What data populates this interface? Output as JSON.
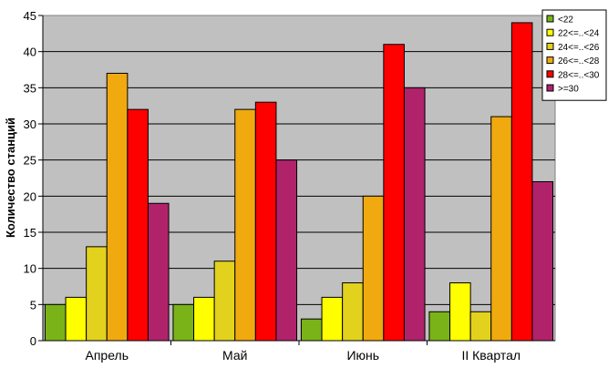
{
  "chart_data": {
    "type": "bar",
    "ylabel": "Количество станций",
    "xlabel": "",
    "ylim": [
      0,
      45
    ],
    "yticks": [
      0,
      5,
      10,
      15,
      20,
      25,
      30,
      35,
      40,
      45
    ],
    "grid": true,
    "legend_position": "top-right",
    "categories": [
      "Апрель",
      "Май",
      "Июнь",
      "II Квартал"
    ],
    "series": [
      {
        "name": "<22",
        "color": "#7AB317",
        "values": [
          5,
          5,
          3,
          4
        ]
      },
      {
        "name": "22<=..<24",
        "color": "#FFFF00",
        "values": [
          6,
          6,
          6,
          8
        ]
      },
      {
        "name": "24<=..<26",
        "color": "#E2D21E",
        "values": [
          13,
          11,
          8,
          4
        ]
      },
      {
        "name": "26<=..<28",
        "color": "#F0AA0F",
        "values": [
          37,
          32,
          20,
          31
        ]
      },
      {
        "name": "28<=..<30",
        "color": "#FF0000",
        "values": [
          32,
          33,
          41,
          44
        ]
      },
      {
        "name": ">=30",
        "color": "#B0236B",
        "values": [
          19,
          25,
          35,
          22
        ]
      }
    ],
    "plot_background": "#C0C0C0"
  }
}
